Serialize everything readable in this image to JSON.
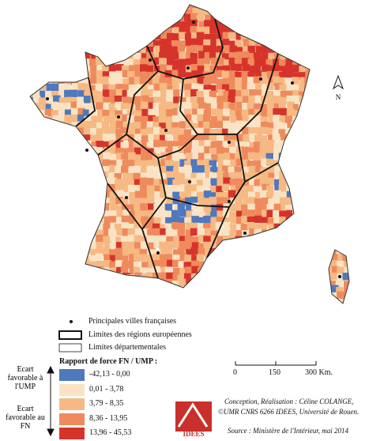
{
  "map": {
    "north": "N"
  },
  "legend": {
    "symbols": [
      {
        "label": "Principales villes françaises"
      },
      {
        "label": "Limites des régions européennes"
      },
      {
        "label": "Limites départementales"
      }
    ],
    "title": "Rapport de force FN / UMP :",
    "axis_top": "Ecart favorable à l'UMP",
    "axis_bottom": "Ecart favorable au FN",
    "classes": [
      {
        "label": "-42,13 - 0,00",
        "color": "#4f78bd"
      },
      {
        "label": "0,01 - 3,78",
        "color": "#fae3c4"
      },
      {
        "label": "3,79 - 8,35",
        "color": "#f6b983"
      },
      {
        "label": "8,36 - 13,95",
        "color": "#ef8a5c"
      },
      {
        "label": "13,96 - 45,53",
        "color": "#d6342b"
      }
    ]
  },
  "scale": {
    "ticks": [
      "0",
      "150",
      "300 Km."
    ]
  },
  "logo": "IDEES",
  "credits": [
    "Conception, Réalisation : Céline COLANGE,",
    "©UMR CNRS 6266 IDEES, Université de Rouen."
  ],
  "source": "Source : Ministère de l'Intérieur, mai 2014"
}
